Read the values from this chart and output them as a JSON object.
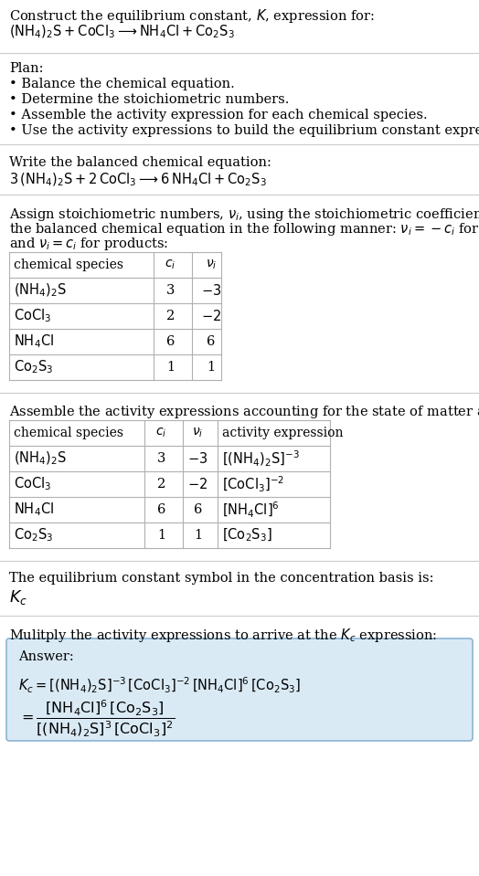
{
  "title_line1": "Construct the equilibrium constant, $K$, expression for:",
  "title_line2": "$(\\mathrm{NH_4})_2\\mathrm{S} + \\mathrm{CoCl_3} \\longrightarrow \\mathrm{NH_4Cl} + \\mathrm{Co_2S_3}$",
  "plan_header": "Plan:",
  "plan_items": [
    "• Balance the chemical equation.",
    "• Determine the stoichiometric numbers.",
    "• Assemble the activity expression for each chemical species.",
    "• Use the activity expressions to build the equilibrium constant expression."
  ],
  "balanced_header": "Write the balanced chemical equation:",
  "balanced_eq": "$3\\,(\\mathrm{NH_4})_2\\mathrm{S} + 2\\,\\mathrm{CoCl_3} \\longrightarrow 6\\,\\mathrm{NH_4Cl} + \\mathrm{Co_2S_3}$",
  "stoich_header_line1": "Assign stoichiometric numbers, $\\nu_i$, using the stoichiometric coefficients, $c_i$, from",
  "stoich_header_line2": "the balanced chemical equation in the following manner: $\\nu_i = -c_i$ for reactants",
  "stoich_header_line3": "and $\\nu_i = c_i$ for products:",
  "table1_headers": [
    "chemical species",
    "$c_i$",
    "$\\nu_i$"
  ],
  "table1_rows": [
    [
      "$(\\mathrm{NH_4})_2\\mathrm{S}$",
      "3",
      "$-3$"
    ],
    [
      "$\\mathrm{CoCl_3}$",
      "2",
      "$-2$"
    ],
    [
      "$\\mathrm{NH_4Cl}$",
      "6",
      "6"
    ],
    [
      "$\\mathrm{Co_2S_3}$",
      "1",
      "1"
    ]
  ],
  "activity_header": "Assemble the activity expressions accounting for the state of matter and $\\nu_i$:",
  "table2_headers": [
    "chemical species",
    "$c_i$",
    "$\\nu_i$",
    "activity expression"
  ],
  "table2_rows": [
    [
      "$(\\mathrm{NH_4})_2\\mathrm{S}$",
      "3",
      "$-3$",
      "$[(\\mathrm{NH_4})_2\\mathrm{S}]^{-3}$"
    ],
    [
      "$\\mathrm{CoCl_3}$",
      "2",
      "$-2$",
      "$[\\mathrm{CoCl_3}]^{-2}$"
    ],
    [
      "$\\mathrm{NH_4Cl}$",
      "6",
      "6",
      "$[\\mathrm{NH_4Cl}]^6$"
    ],
    [
      "$\\mathrm{Co_2S_3}$",
      "1",
      "1",
      "$[\\mathrm{Co_2S_3}]$"
    ]
  ],
  "kc_header": "The equilibrium constant symbol in the concentration basis is:",
  "kc_symbol": "$K_c$",
  "multiply_header": "Mulitply the activity expressions to arrive at the $K_c$ expression:",
  "answer_label": "Answer:",
  "answer_eq": "$K_c = [(\\mathrm{NH_4})_2\\mathrm{S}]^{-3}\\,[\\mathrm{CoCl_3}]^{-2}\\,[\\mathrm{NH_4Cl}]^6\\,[\\mathrm{Co_2S_3}]$",
  "answer_eq2": "$= \\dfrac{[\\mathrm{NH_4Cl}]^6\\,[\\mathrm{Co_2S_3}]}{[(\\mathrm{NH_4})_2\\mathrm{S}]^3\\,[\\mathrm{CoCl_3}]^2}$",
  "bg_color": "#ffffff",
  "table_border_color": "#b0b0b0",
  "answer_box_color": "#daeaf5",
  "answer_box_border": "#8ab4d4",
  "text_color": "#000000",
  "line_color": "#cccccc",
  "fontsize": 10.5
}
